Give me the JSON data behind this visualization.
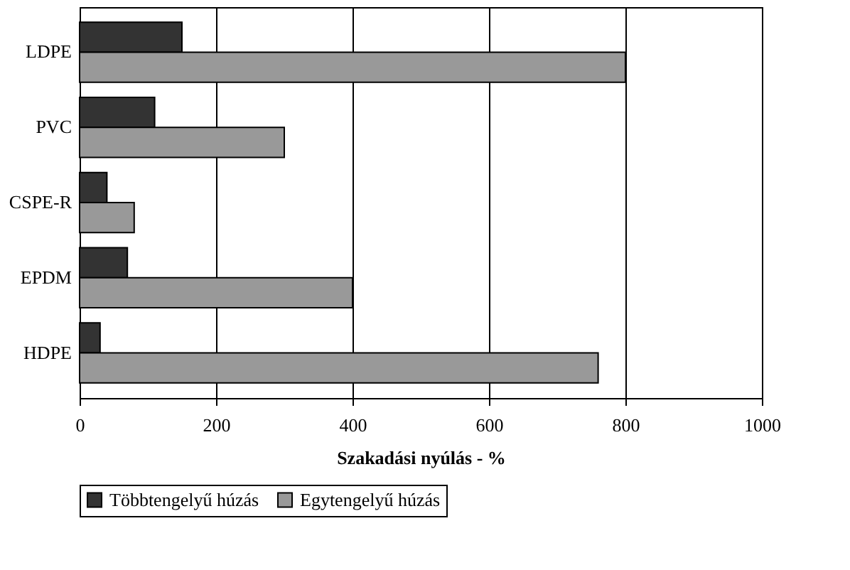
{
  "chart_data": {
    "type": "bar",
    "orientation": "horizontal",
    "xlabel": "Szakadási nyúlás - %",
    "categories": [
      "LDPE",
      "PVC",
      "CSPE-R",
      "EPDM",
      "HDPE"
    ],
    "series": [
      {
        "name": "Többtengelyű húzás",
        "color": "#333333",
        "values": [
          150,
          110,
          40,
          70,
          30
        ]
      },
      {
        "name": "Egytengelyű húzás",
        "color": "#999999",
        "values": [
          800,
          300,
          80,
          400,
          760
        ]
      }
    ],
    "xlim": [
      0,
      1000
    ],
    "xticks": [
      0,
      200,
      400,
      600,
      800,
      1000
    ],
    "grid": "x",
    "legend": "bottom"
  }
}
